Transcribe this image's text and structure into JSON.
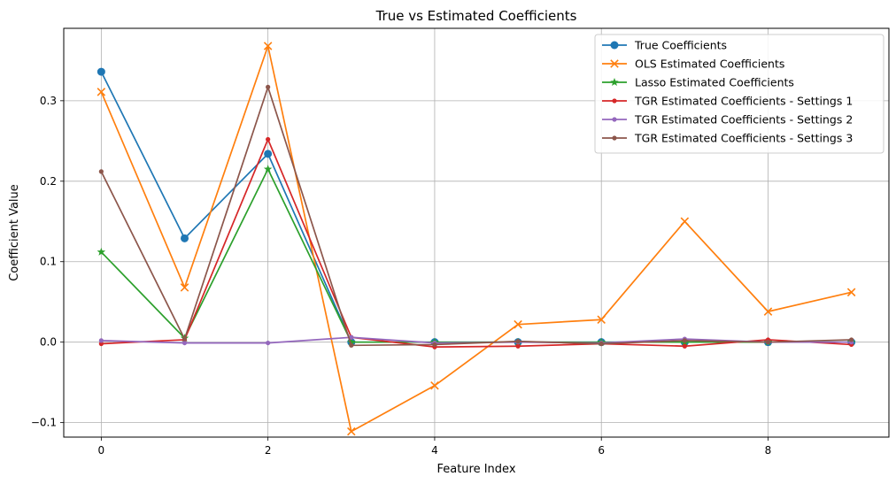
{
  "chart_data": {
    "type": "line",
    "title": "True vs Estimated Coefficients",
    "xlabel": "Feature Index",
    "ylabel": "Coefficient Value",
    "x": [
      0,
      1,
      2,
      3,
      4,
      5,
      6,
      7,
      8,
      9
    ],
    "xlim": [
      -0.45,
      9.45
    ],
    "ylim": [
      -0.118,
      0.39
    ],
    "xticks": [
      0,
      2,
      4,
      6,
      8
    ],
    "xtick_labels": [
      "0",
      "2",
      "4",
      "6",
      "8"
    ],
    "yticks": [
      -0.1,
      0.0,
      0.1,
      0.2,
      0.3
    ],
    "ytick_labels": [
      "−0.1",
      "0.0",
      "0.1",
      "0.2",
      "0.3"
    ],
    "grid": true,
    "legend_position": "top-right",
    "series": [
      {
        "name": "True Coefficients",
        "color": "#1f77b4",
        "marker": "circle-large",
        "values": [
          0.336,
          0.129,
          0.234,
          0.0,
          0.0,
          0.0,
          0.0,
          0.0,
          0.0,
          0.0
        ]
      },
      {
        "name": "OLS Estimated Coefficients",
        "color": "#ff7f0e",
        "marker": "x",
        "values": [
          0.311,
          0.068,
          0.368,
          -0.111,
          -0.054,
          0.022,
          0.028,
          0.15,
          0.038,
          0.062
        ]
      },
      {
        "name": "Lasso Estimated Coefficients",
        "color": "#2ca02c",
        "marker": "star",
        "values": [
          0.112,
          0.005,
          0.215,
          0.0,
          0.0,
          0.0,
          0.0,
          0.0,
          0.0,
          0.0
        ]
      },
      {
        "name": "TGR Estimated Coefficients - Settings 1",
        "color": "#d62728",
        "marker": "circle-small",
        "values": [
          -0.002,
          0.003,
          0.252,
          0.006,
          -0.006,
          -0.005,
          -0.002,
          -0.005,
          0.003,
          -0.003
        ]
      },
      {
        "name": "TGR Estimated Coefficients - Settings 2",
        "color": "#9467bd",
        "marker": "circle-small",
        "values": [
          0.002,
          -0.001,
          -0.001,
          0.006,
          -0.001,
          0.0,
          -0.001,
          0.004,
          0.0,
          0.0
        ]
      },
      {
        "name": "TGR Estimated Coefficients - Settings 3",
        "color": "#8c564b",
        "marker": "circle-small",
        "values": [
          0.212,
          0.004,
          0.317,
          -0.004,
          -0.003,
          0.001,
          -0.002,
          0.002,
          0.0,
          0.003
        ]
      }
    ]
  }
}
